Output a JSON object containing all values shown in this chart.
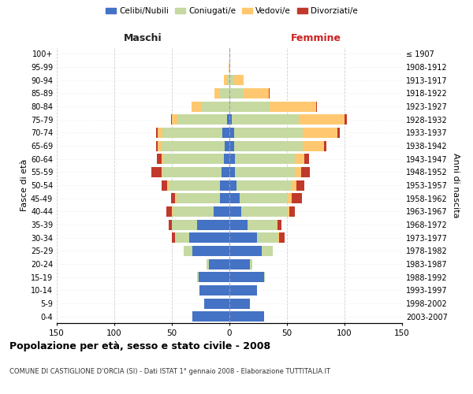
{
  "age_groups": [
    "0-4",
    "5-9",
    "10-14",
    "15-19",
    "20-24",
    "25-29",
    "30-34",
    "35-39",
    "40-44",
    "45-49",
    "50-54",
    "55-59",
    "60-64",
    "65-69",
    "70-74",
    "75-79",
    "80-84",
    "85-89",
    "90-94",
    "95-99",
    "100+"
  ],
  "birth_years": [
    "2003-2007",
    "1998-2002",
    "1993-1997",
    "1988-1992",
    "1983-1987",
    "1978-1982",
    "1973-1977",
    "1968-1972",
    "1963-1967",
    "1958-1962",
    "1953-1957",
    "1948-1952",
    "1943-1947",
    "1938-1942",
    "1933-1937",
    "1928-1932",
    "1923-1927",
    "1918-1922",
    "1913-1917",
    "1908-1912",
    "≤ 1907"
  ],
  "colors": {
    "celibe": "#4472C4",
    "coniugato": "#c5d9a0",
    "vedovo": "#ffc870",
    "divorziato": "#c0392b"
  },
  "maschi": {
    "celibe": [
      32,
      22,
      26,
      27,
      18,
      32,
      35,
      28,
      14,
      8,
      8,
      7,
      5,
      4,
      6,
      2,
      0,
      0,
      0,
      0,
      0
    ],
    "coniugato": [
      0,
      0,
      0,
      1,
      2,
      8,
      12,
      22,
      35,
      38,
      45,
      51,
      52,
      55,
      52,
      43,
      25,
      8,
      2,
      0,
      0
    ],
    "vedovo": [
      0,
      0,
      0,
      0,
      0,
      0,
      0,
      0,
      1,
      1,
      1,
      1,
      2,
      3,
      4,
      5,
      8,
      5,
      3,
      1,
      0
    ],
    "divorziato": [
      0,
      0,
      0,
      0,
      0,
      0,
      3,
      3,
      5,
      4,
      5,
      9,
      4,
      2,
      2,
      1,
      0,
      0,
      0,
      0,
      0
    ]
  },
  "femmine": {
    "nubile": [
      30,
      18,
      24,
      30,
      18,
      28,
      24,
      16,
      10,
      9,
      6,
      5,
      5,
      4,
      4,
      2,
      0,
      0,
      0,
      0,
      0
    ],
    "coniugata": [
      0,
      0,
      0,
      1,
      2,
      10,
      18,
      25,
      40,
      42,
      48,
      52,
      52,
      60,
      60,
      58,
      35,
      12,
      4,
      0,
      0
    ],
    "vedova": [
      0,
      0,
      0,
      0,
      0,
      0,
      1,
      1,
      2,
      3,
      4,
      5,
      8,
      18,
      30,
      40,
      40,
      22,
      8,
      1,
      1
    ],
    "divorziata": [
      0,
      0,
      0,
      0,
      0,
      0,
      5,
      3,
      5,
      9,
      7,
      8,
      4,
      2,
      2,
      2,
      1,
      1,
      0,
      0,
      0
    ]
  },
  "xlim": 150,
  "title": "Popolazione per età, sesso e stato civile - 2008",
  "subtitle": "COMUNE DI CASTIGLIONE D'ORCIA (SI) - Dati ISTAT 1° gennaio 2008 - Elaborazione TUTTITALIA.IT",
  "xlabel_left": "Maschi",
  "xlabel_right": "Femmine",
  "ylabel_left": "Fasce di età",
  "ylabel_right": "Anni di nascita",
  "bg_color": "#ffffff",
  "grid_color": "#cccccc",
  "legend_labels": [
    "Celibi/Nubili",
    "Coniugati/e",
    "Vedovi/e",
    "Divorziati/e"
  ]
}
